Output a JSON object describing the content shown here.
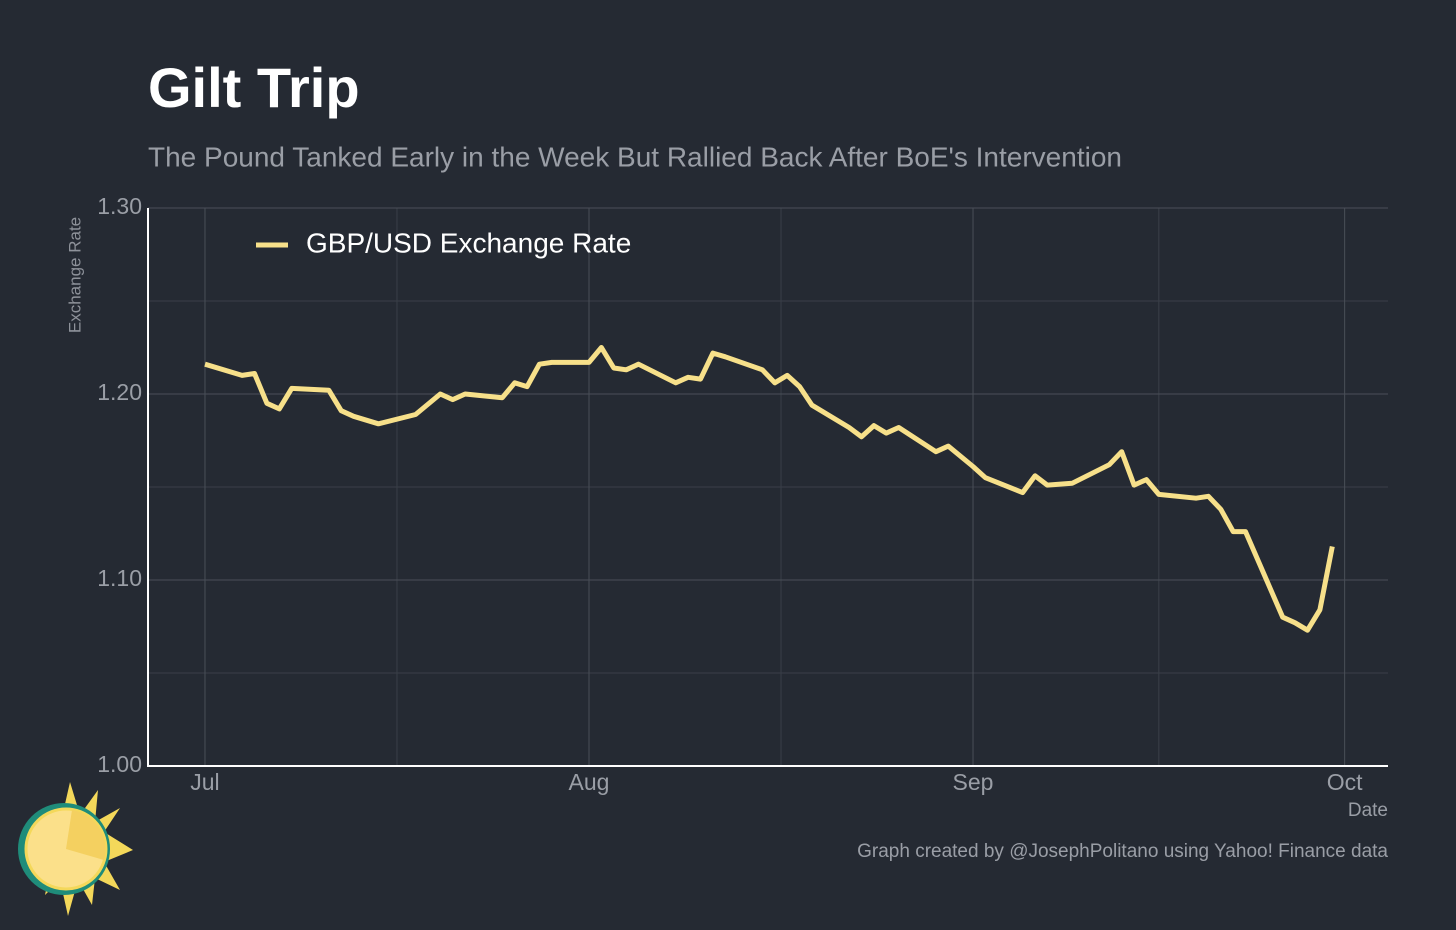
{
  "chart_data": {
    "type": "line",
    "title": "Gilt Trip",
    "subtitle": "The Pound Tanked Early in the Week But Rallied Back After BoE's Intervention",
    "y_label": "Exchange Rate",
    "x_label": "Date",
    "caption": "Graph created by @JosephPolitano using Yahoo! Finance data",
    "x": [
      0,
      3,
      4,
      5,
      6,
      7,
      10,
      11,
      12,
      14,
      17,
      19,
      20,
      21,
      24,
      25,
      26,
      27,
      28,
      31,
      32,
      33,
      34,
      35,
      38,
      39,
      40,
      41,
      42,
      45,
      46,
      47,
      48,
      49,
      52,
      53,
      54,
      55,
      56,
      59,
      60,
      62,
      63,
      66,
      67,
      68,
      70,
      73,
      74,
      75,
      76,
      77,
      80,
      81,
      82,
      83,
      84,
      87,
      88,
      89,
      90,
      91
    ],
    "series": [
      {
        "name": "GBP/USD Exchange Rate",
        "color": "#f7e08a",
        "values": [
          1.216,
          1.21,
          1.211,
          1.195,
          1.192,
          1.203,
          1.202,
          1.191,
          1.188,
          1.184,
          1.189,
          1.2,
          1.197,
          1.2,
          1.198,
          1.206,
          1.204,
          1.216,
          1.217,
          1.217,
          1.225,
          1.214,
          1.213,
          1.216,
          1.206,
          1.209,
          1.208,
          1.222,
          1.22,
          1.213,
          1.206,
          1.21,
          1.204,
          1.194,
          1.182,
          1.177,
          1.183,
          1.179,
          1.182,
          1.169,
          1.172,
          1.161,
          1.155,
          1.147,
          1.156,
          1.151,
          1.152,
          1.162,
          1.169,
          1.151,
          1.154,
          1.146,
          1.144,
          1.145,
          1.138,
          1.126,
          1.126,
          1.08,
          1.077,
          1.073,
          1.084,
          1.118
        ]
      }
    ],
    "xlim": [
      -4.6,
      95.5
    ],
    "ylim": [
      1.0,
      1.3
    ],
    "xticks": [
      {
        "value": 0,
        "label": "Jul"
      },
      {
        "value": 31,
        "label": "Aug"
      },
      {
        "value": 62,
        "label": "Sep"
      },
      {
        "value": 92,
        "label": "Oct"
      }
    ],
    "yticks": [
      {
        "value": 1.0,
        "label": "1.00"
      },
      {
        "value": 1.1,
        "label": "1.10"
      },
      {
        "value": 1.2,
        "label": "1.20"
      },
      {
        "value": 1.3,
        "label": "1.30"
      }
    ],
    "x_minor_grid": [
      15.5,
      46.5,
      77
    ],
    "y_minor_grid": [
      1.05,
      1.15,
      1.25
    ],
    "grid": true,
    "legend": "top-left"
  }
}
